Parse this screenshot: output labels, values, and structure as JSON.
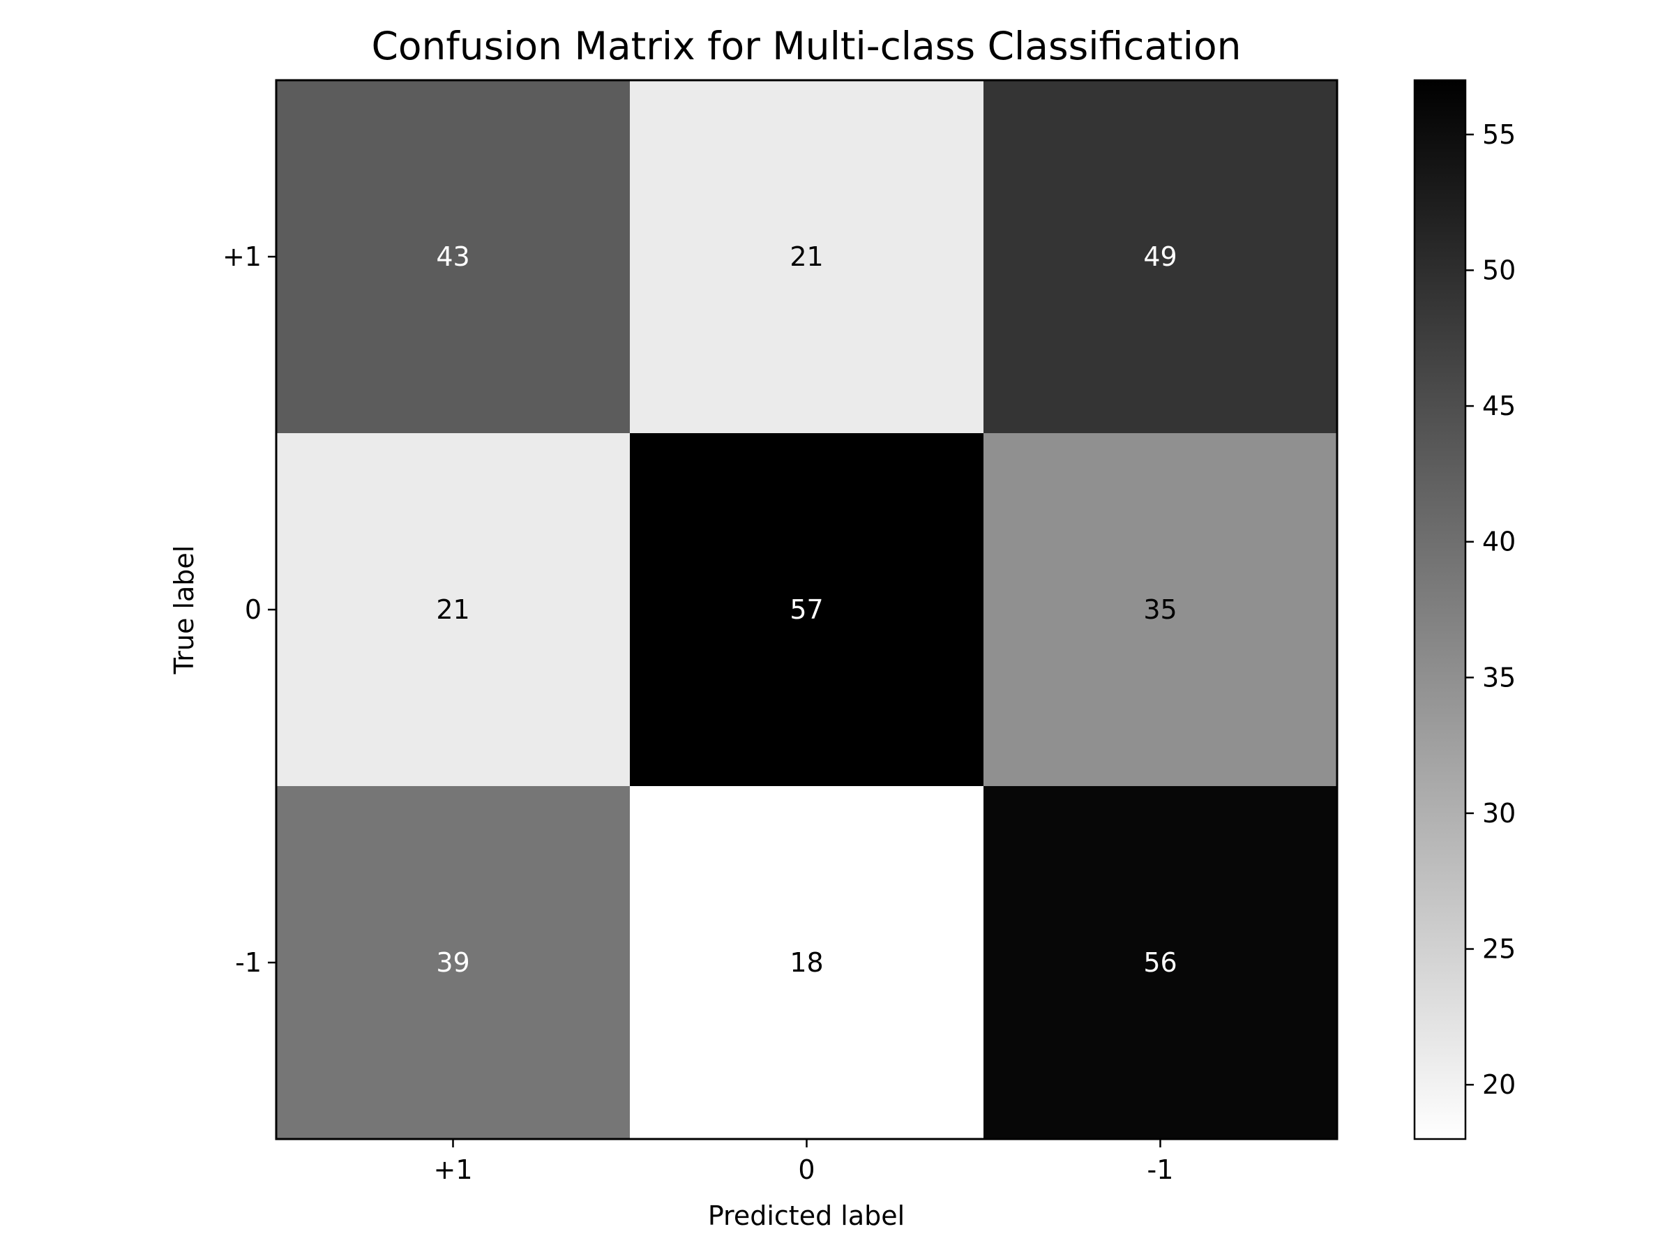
{
  "chart_data": {
    "type": "heatmap",
    "title": "Confusion Matrix for Multi-class Classification",
    "xlabel": "Predicted label",
    "ylabel": "True label",
    "x_categories": [
      "+1",
      "0",
      "-1"
    ],
    "y_categories": [
      "+1",
      "0",
      "-1"
    ],
    "values": [
      [
        43,
        21,
        49
      ],
      [
        21,
        57,
        35
      ],
      [
        39,
        18,
        56
      ]
    ],
    "colormap": "Greys",
    "color_low": "#ffffff",
    "color_high": "#000000",
    "vmin": 18,
    "vmax": 57,
    "colorbar_ticks": [
      20,
      25,
      30,
      35,
      40,
      45,
      50,
      55
    ],
    "text_color_light": "#ffffff",
    "text_color_dark": "#000000"
  }
}
